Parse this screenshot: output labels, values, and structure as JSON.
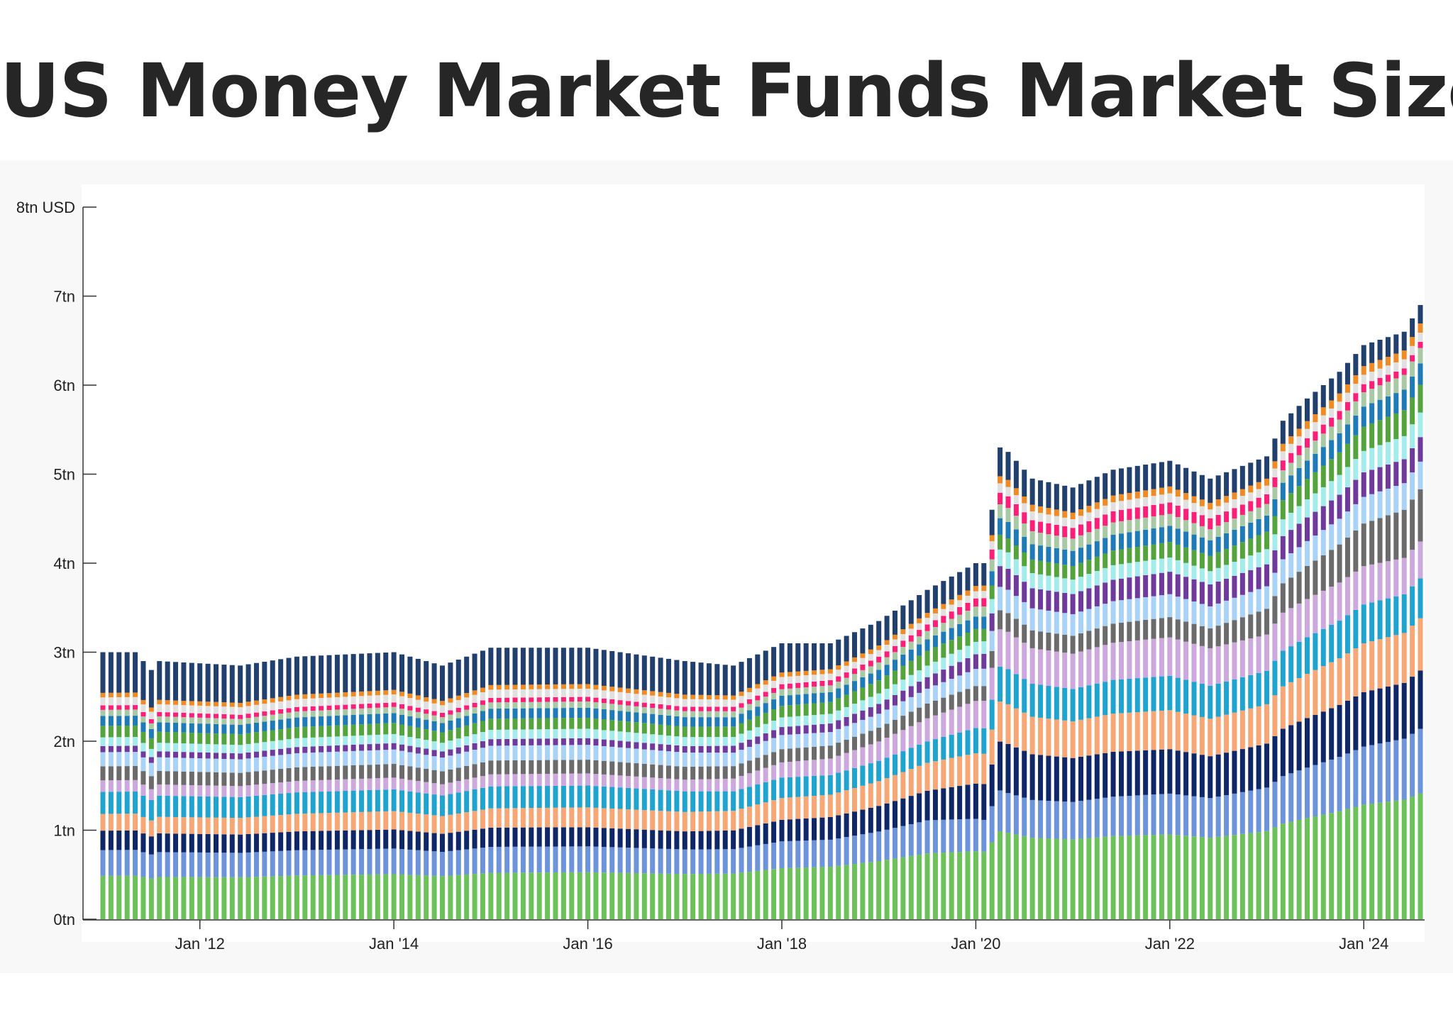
{
  "page": {
    "title": "US Money Market Funds Market Size"
  },
  "colors": {
    "panel_background": "#f8f8f8",
    "plot_background": "#ffffff",
    "axis": "#333333",
    "series_palette": [
      "#6cc15a",
      "#6d93db",
      "#0f2767",
      "#f7a776",
      "#1fa3cf",
      "#cda8dc",
      "#6b6b6b",
      "#a8d2f6",
      "#6f3a9c",
      "#a4ecec",
      "#54a33d",
      "#1f7ab8",
      "#a9c9a5",
      "#ff1f79",
      "#e0e0e0",
      "#f08a24",
      "#22406e"
    ]
  },
  "chart_data": {
    "type": "bar",
    "stacked": true,
    "title": "US Money Market Funds Market Size",
    "unit": "USD",
    "x_start": "2011-01",
    "x_frequency": "monthly",
    "x_end": "2024-08",
    "ylim": [
      0,
      8
    ],
    "y_ticks": [
      {
        "value": 0,
        "label": "0tn"
      },
      {
        "value": 1,
        "label": "1tn"
      },
      {
        "value": 2,
        "label": "2tn"
      },
      {
        "value": 3,
        "label": "3tn"
      },
      {
        "value": 4,
        "label": "4tn"
      },
      {
        "value": 5,
        "label": "5tn"
      },
      {
        "value": 6,
        "label": "6tn"
      },
      {
        "value": 7,
        "label": "7tn"
      },
      {
        "value": 8,
        "label": "8tn USD"
      }
    ],
    "x_ticks": [
      {
        "date": "2012-01",
        "label": "Jan '12"
      },
      {
        "date": "2014-01",
        "label": "Jan '14"
      },
      {
        "date": "2016-01",
        "label": "Jan '16"
      },
      {
        "date": "2018-01",
        "label": "Jan '18"
      },
      {
        "date": "2020-01",
        "label": "Jan '20"
      },
      {
        "date": "2022-01",
        "label": "Jan '22"
      },
      {
        "date": "2024-01",
        "label": "Jan '24"
      }
    ],
    "total_anchors": [
      {
        "date": "2011-01",
        "total": 3.0
      },
      {
        "date": "2011-05",
        "total": 3.0
      },
      {
        "date": "2011-07",
        "total": 2.8
      },
      {
        "date": "2011-08",
        "total": 2.9
      },
      {
        "date": "2012-06",
        "total": 2.85
      },
      {
        "date": "2013-01",
        "total": 2.95
      },
      {
        "date": "2014-01",
        "total": 3.0
      },
      {
        "date": "2014-07",
        "total": 2.85
      },
      {
        "date": "2015-01",
        "total": 3.05
      },
      {
        "date": "2016-01",
        "total": 3.05
      },
      {
        "date": "2017-01",
        "total": 2.9
      },
      {
        "date": "2017-07",
        "total": 2.85
      },
      {
        "date": "2018-01",
        "total": 3.1
      },
      {
        "date": "2018-07",
        "total": 3.1
      },
      {
        "date": "2019-01",
        "total": 3.35
      },
      {
        "date": "2019-07",
        "total": 3.7
      },
      {
        "date": "2020-01",
        "total": 4.0
      },
      {
        "date": "2020-02",
        "total": 4.0
      },
      {
        "date": "2020-03",
        "total": 4.6
      },
      {
        "date": "2020-04",
        "total": 5.3
      },
      {
        "date": "2020-05",
        "total": 5.25
      },
      {
        "date": "2020-08",
        "total": 4.95
      },
      {
        "date": "2021-01",
        "total": 4.85
      },
      {
        "date": "2021-06",
        "total": 5.05
      },
      {
        "date": "2022-01",
        "total": 5.15
      },
      {
        "date": "2022-06",
        "total": 4.95
      },
      {
        "date": "2023-01",
        "total": 5.2
      },
      {
        "date": "2023-03",
        "total": 5.6
      },
      {
        "date": "2023-06",
        "total": 5.85
      },
      {
        "date": "2023-10",
        "total": 6.15
      },
      {
        "date": "2024-01",
        "total": 6.45
      },
      {
        "date": "2024-06",
        "total": 6.6
      },
      {
        "date": "2024-08",
        "total": 6.9
      }
    ],
    "series_share_anchors": [
      {
        "date": "2011-01",
        "shares": [
          0.163,
          0.097,
          0.073,
          0.063,
          0.083,
          0.043,
          0.053,
          0.053,
          0.023,
          0.033,
          0.043,
          0.037,
          0.023,
          0.017,
          0.03,
          0.017,
          0.153
        ]
      },
      {
        "date": "2017-01",
        "shares": [
          0.175,
          0.095,
          0.07,
          0.075,
          0.08,
          0.045,
          0.05,
          0.055,
          0.025,
          0.035,
          0.04,
          0.037,
          0.023,
          0.017,
          0.03,
          0.017,
          0.13
        ]
      },
      {
        "date": "2019-07",
        "shares": [
          0.2,
          0.1,
          0.09,
          0.085,
          0.065,
          0.07,
          0.045,
          0.045,
          0.035,
          0.035,
          0.045,
          0.035,
          0.025,
          0.02,
          0.02,
          0.015,
          0.07
        ]
      },
      {
        "date": "2020-05",
        "shares": [
          0.185,
          0.085,
          0.105,
          0.085,
          0.075,
          0.08,
          0.04,
          0.05,
          0.045,
          0.035,
          0.03,
          0.035,
          0.03,
          0.025,
          0.02,
          0.015,
          0.06
        ]
      },
      {
        "date": "2022-06",
        "shares": [
          0.185,
          0.09,
          0.095,
          0.085,
          0.075,
          0.085,
          0.045,
          0.05,
          0.05,
          0.03,
          0.035,
          0.035,
          0.025,
          0.025,
          0.02,
          0.015,
          0.055
        ]
      },
      {
        "date": "2024-08",
        "shares": [
          0.205,
          0.105,
          0.095,
          0.085,
          0.065,
          0.06,
          0.085,
          0.045,
          0.04,
          0.04,
          0.045,
          0.035,
          0.025,
          0.01,
          0.015,
          0.015,
          0.03
        ]
      }
    ]
  }
}
